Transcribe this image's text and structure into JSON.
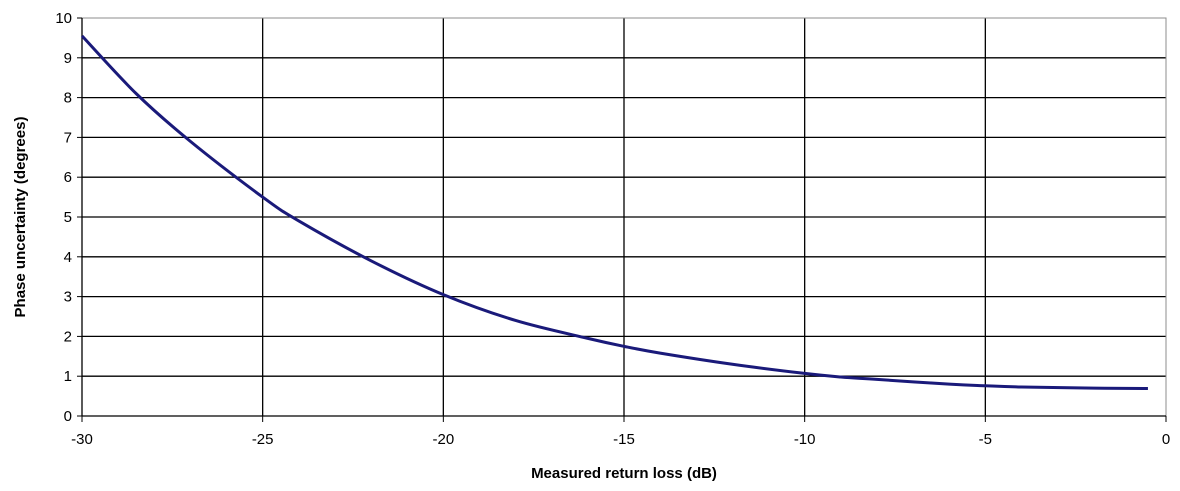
{
  "chart_data": {
    "type": "line",
    "title": "",
    "xlabel": "Measured return loss (dB)",
    "ylabel": "Phase uncertainty (degrees)",
    "xlim": [
      -30,
      0
    ],
    "ylim": [
      0,
      10
    ],
    "x_ticks": [
      "-30",
      "-25",
      "-20",
      "-15",
      "-10",
      "-5",
      "0"
    ],
    "y_ticks": [
      "0",
      "1",
      "2",
      "3",
      "4",
      "5",
      "6",
      "7",
      "8",
      "9",
      "10"
    ],
    "grid": true,
    "series": [
      {
        "color": "#1a1a7a",
        "x": [
          -30,
          -28.5,
          -27,
          -25,
          -24,
          -22,
          -20,
          -18,
          -16,
          -15,
          -14,
          -12,
          -10,
          -9,
          -8,
          -6,
          -5,
          -4,
          -2,
          -0.5
        ],
        "y": [
          9.55,
          8.1,
          6.9,
          5.5,
          4.9,
          3.9,
          3.05,
          2.4,
          1.95,
          1.75,
          1.58,
          1.3,
          1.07,
          0.98,
          0.92,
          0.8,
          0.76,
          0.73,
          0.7,
          0.69
        ]
      }
    ]
  }
}
